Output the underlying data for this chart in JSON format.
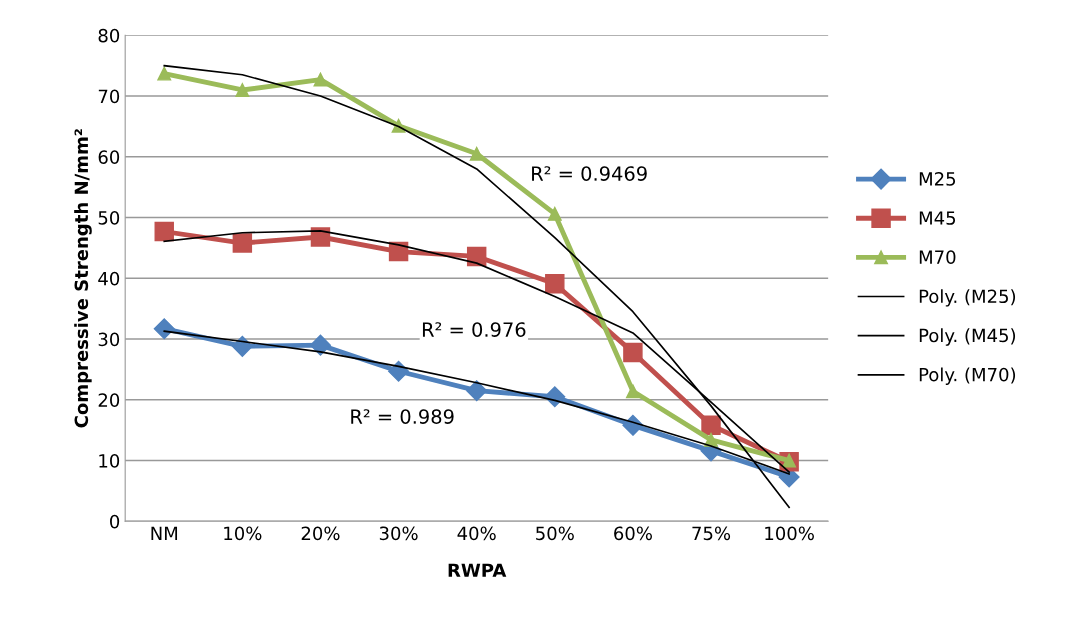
{
  "chart_data": {
    "type": "line",
    "xlabel": "RWPA",
    "ylabel": "Compressive Strength N/mm²",
    "categories": [
      "NM",
      "10%",
      "20%",
      "30%",
      "40%",
      "50%",
      "60%",
      "75%",
      "100%"
    ],
    "ylim": [
      0,
      80
    ],
    "yticks": [
      0,
      10,
      20,
      30,
      40,
      50,
      60,
      70,
      80
    ],
    "grid": "y",
    "legend": "right",
    "line_style": "solid",
    "series": [
      {
        "name": "M25",
        "color": "#4f81bd",
        "marker": "diamond",
        "values": [
          31.7,
          28.8,
          29.0,
          24.7,
          21.5,
          20.5,
          15.8,
          11.6,
          7.3
        ]
      },
      {
        "name": "M45",
        "color": "#c0504d",
        "marker": "square",
        "values": [
          47.7,
          45.8,
          46.8,
          44.4,
          43.6,
          39.1,
          27.8,
          15.8,
          9.8
        ]
      },
      {
        "name": "M70",
        "color": "#9bbb59",
        "marker": "triangle",
        "values": [
          73.7,
          71.0,
          72.7,
          65.1,
          60.5,
          50.6,
          21.4,
          13.4,
          10.0
        ]
      },
      {
        "name": "Poly. (M25)",
        "color": "#000000",
        "marker": "none",
        "values": [
          31.3,
          29.6,
          27.9,
          25.5,
          22.8,
          19.9,
          16.3,
          12.4,
          7.8
        ]
      },
      {
        "name": "Poly. (M45)",
        "color": "#000000",
        "marker": "none",
        "values": [
          46.1,
          47.5,
          47.8,
          45.5,
          42.5,
          37.0,
          31.0,
          19.6,
          8.1
        ]
      },
      {
        "name": "Poly. (M70)",
        "color": "#000000",
        "marker": "none",
        "values": [
          75.0,
          73.5,
          70.0,
          65.0,
          58.0,
          46.7,
          34.5,
          19.0,
          2.3
        ]
      }
    ],
    "annotations": [
      "R² = 0.9469",
      "R² = 0.976",
      "R² = 0.989"
    ]
  }
}
